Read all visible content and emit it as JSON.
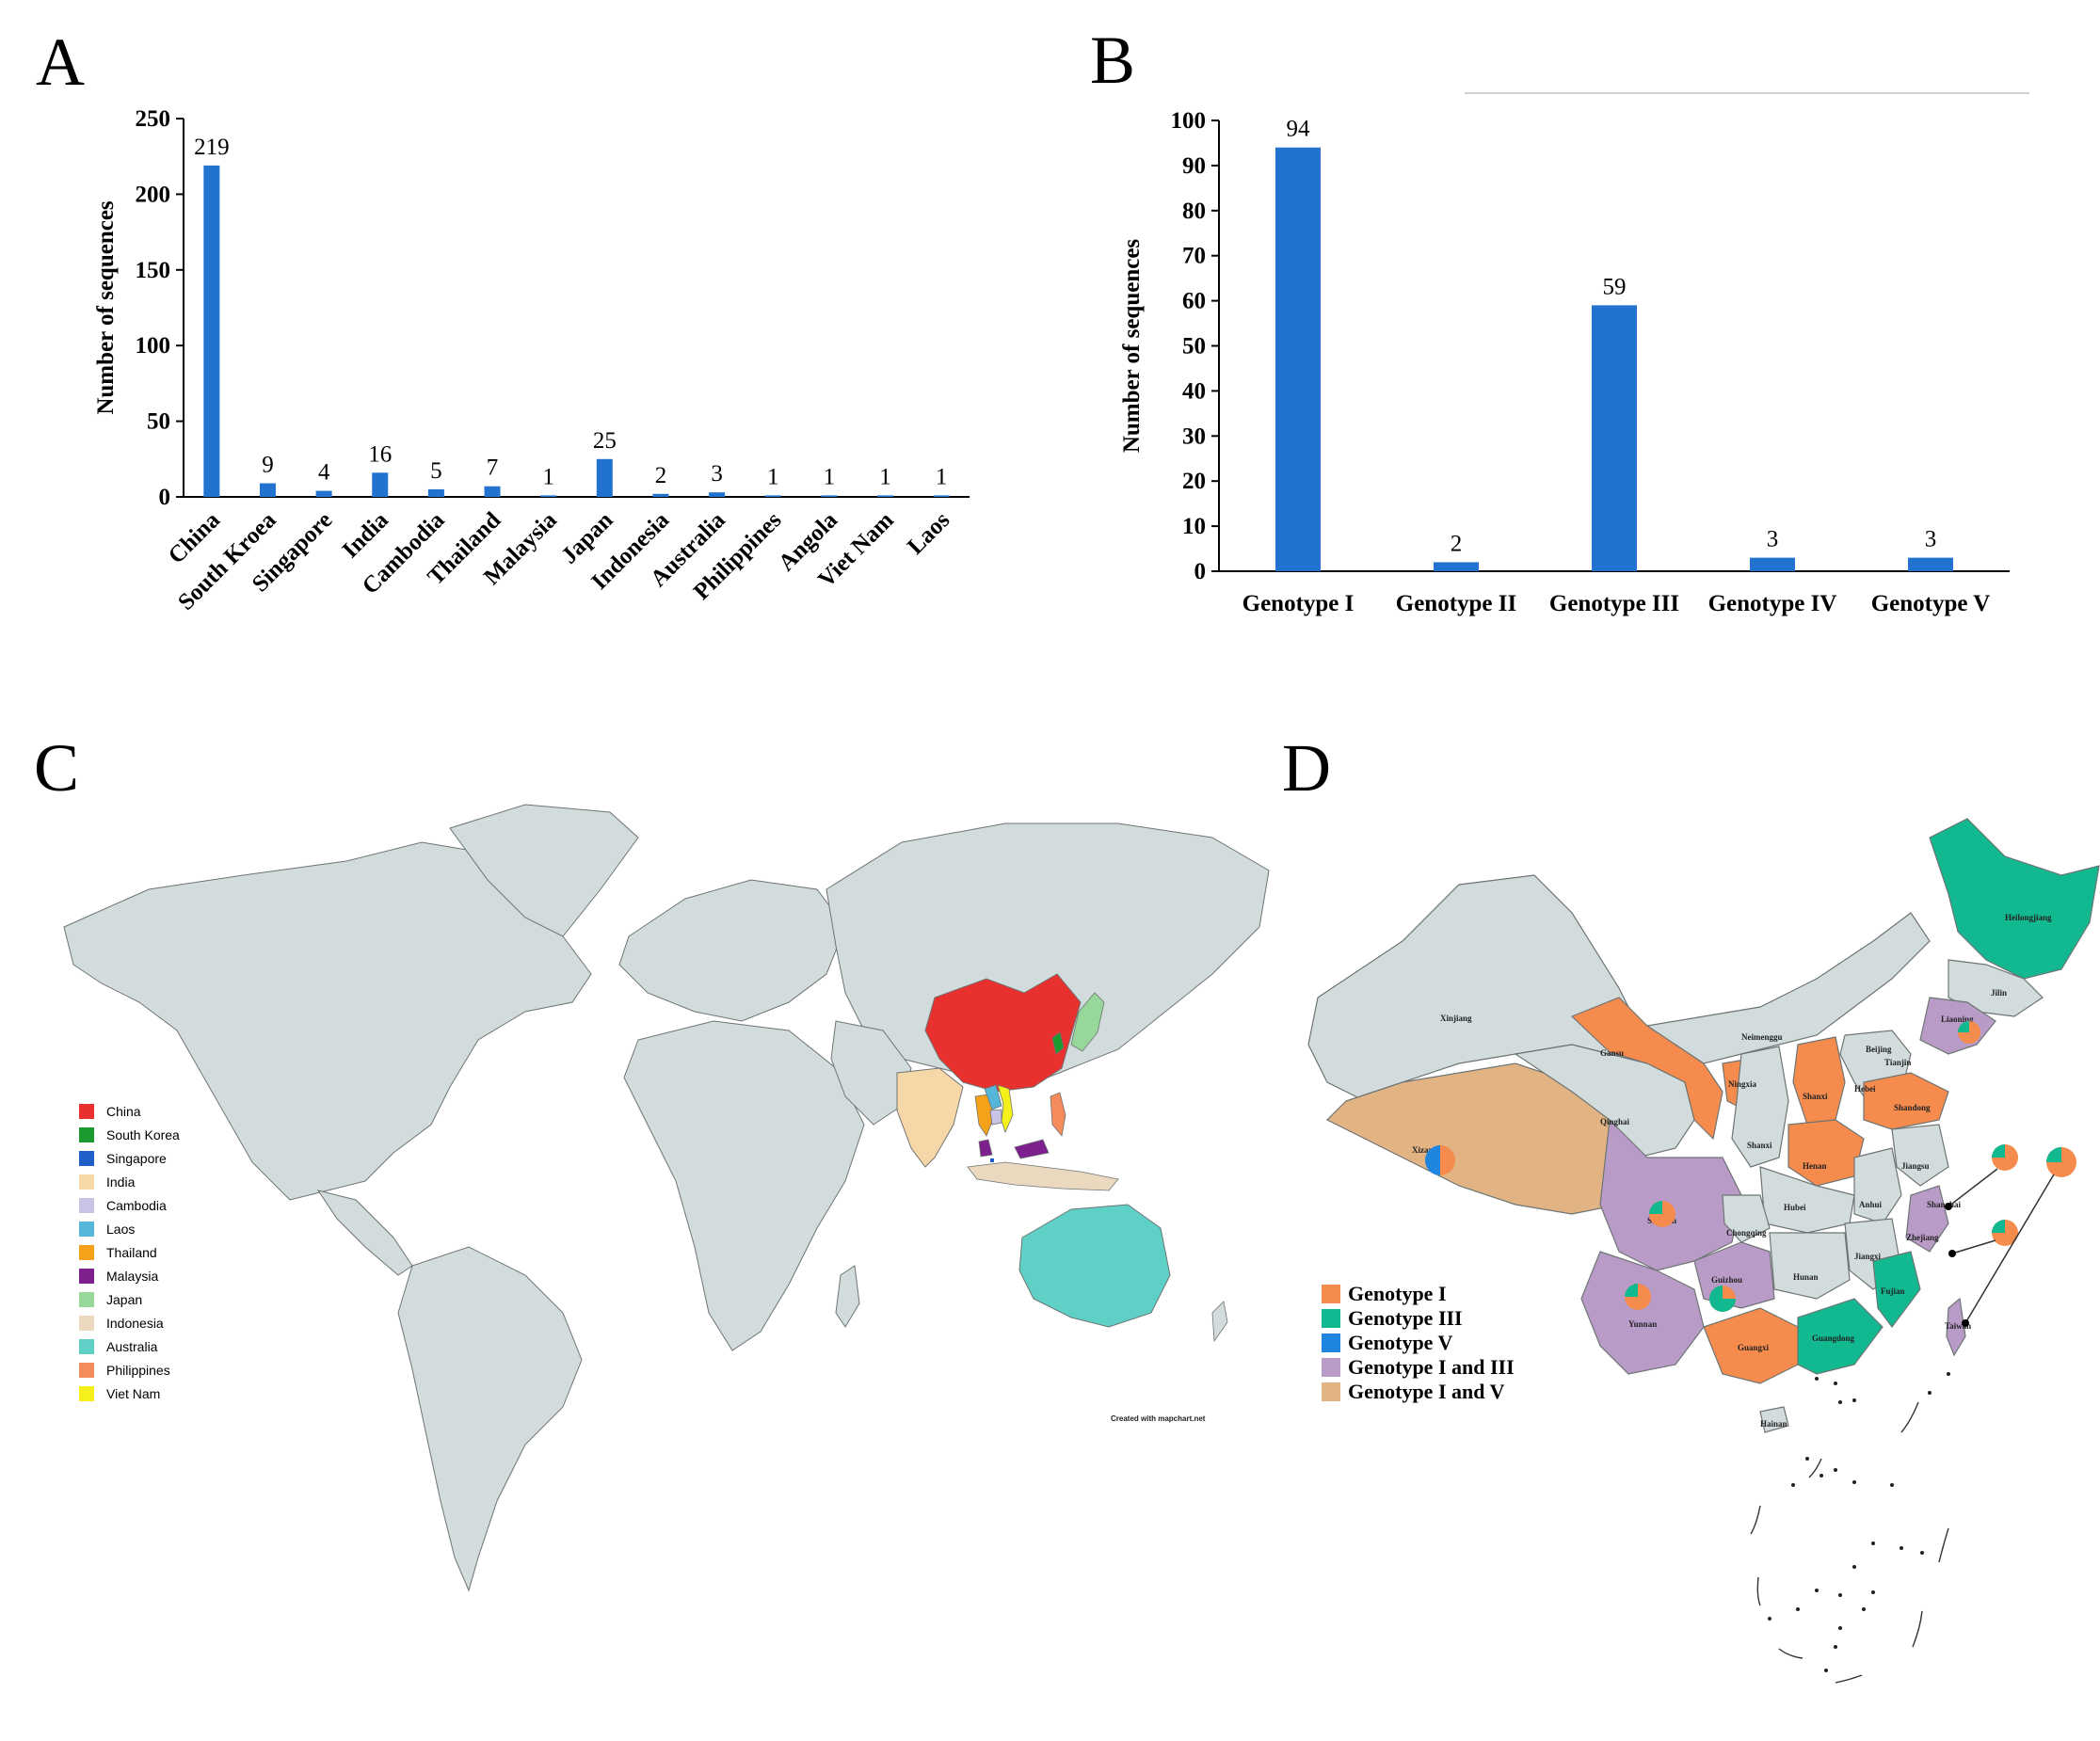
{
  "panels": {
    "a": "A",
    "b": "B",
    "c": "C",
    "d": "D"
  },
  "chart_data": [
    {
      "type": "bar",
      "panel": "A",
      "categories": [
        "China",
        "South Kroea",
        "Singapore",
        "India",
        "Cambodia",
        "Thailand",
        "Malaysia",
        "Japan",
        "Indonesia",
        "Australia",
        "Philippines",
        "Angola",
        "Viet Nam",
        "Laos"
      ],
      "values": [
        219,
        9,
        4,
        16,
        5,
        7,
        1,
        25,
        2,
        3,
        1,
        1,
        1,
        1
      ],
      "ylabel": "Number of sequences",
      "ylim": [
        0,
        250
      ],
      "yticks": [
        0,
        50,
        100,
        150,
        200,
        250
      ],
      "color": "#2272d0"
    },
    {
      "type": "bar",
      "panel": "B",
      "categories": [
        "Genotype I",
        "Genotype II",
        "Genotype III",
        "Genotype IV",
        "Genotype V"
      ],
      "values": [
        94,
        2,
        59,
        3,
        3
      ],
      "ylabel": "Number of sequences",
      "ylim": [
        0,
        100
      ],
      "yticks": [
        0,
        10,
        20,
        30,
        40,
        50,
        60,
        70,
        80,
        90,
        100
      ],
      "color": "#2272d0"
    }
  ],
  "world_map": {
    "legend": [
      {
        "label": "China",
        "color": "#e8312f"
      },
      {
        "label": "South Korea",
        "color": "#1b9a2f"
      },
      {
        "label": "Singapore",
        "color": "#1f5fc9"
      },
      {
        "label": "India",
        "color": "#f6d7a7"
      },
      {
        "label": "Cambodia",
        "color": "#c9c3e6"
      },
      {
        "label": "Laos",
        "color": "#54b6d8"
      },
      {
        "label": "Thailand",
        "color": "#f5a21a"
      },
      {
        "label": "Malaysia",
        "color": "#7d1f8c"
      },
      {
        "label": "Japan",
        "color": "#97d89a"
      },
      {
        "label": "Indonesia",
        "color": "#ead9be"
      },
      {
        "label": "Australia",
        "color": "#5fd0c5"
      },
      {
        "label": "Philippines",
        "color": "#f58a5b"
      },
      {
        "label": "Viet Nam",
        "color": "#f5f01a"
      }
    ],
    "base_color": "#d3dcdc",
    "credit": "Created with mapchart.net"
  },
  "china_map": {
    "legend": [
      {
        "label": "Genotype I",
        "color": "#f58b4c"
      },
      {
        "label": "Genotype III",
        "color": "#12b890"
      },
      {
        "label": "Genotype V",
        "color": "#1f86e0"
      },
      {
        "label": "Genotype I and III",
        "color": "#b99bc8"
      },
      {
        "label": "Genotype I and V",
        "color": "#e2b483"
      }
    ],
    "base_color": "#d3dcdc",
    "provinces": {
      "xinjiang": "Xinjiang",
      "xizang": "Xizang",
      "qinghai": "Qinghai",
      "gansu": "Gansu",
      "neimenggu": "Neimenggu",
      "heilongjiang": "Heilongjiang",
      "jilin": "Jilin",
      "liaoning": "Liaoning",
      "beijing": "Beijing",
      "tianjin": "Tianjin",
      "hebei": "Hebei",
      "shanxi": "Shanxi",
      "shaanxi": "Shanxi",
      "ningxia": "Ningxia",
      "henan": "Henan",
      "shandong": "Shandong",
      "jiangsu": "Jiangsu",
      "shanghai": "Shanghai",
      "anhui": "Anhui",
      "hubei": "Hubei",
      "sichuan": "Sichuan",
      "chongqing": "Chongqing",
      "zhejiang": "Zhejiang",
      "jiangxi": "Jiangxi",
      "hunan": "Hunan",
      "guizhou": "Guizhou",
      "yunnan": "Yunnan",
      "guangxi": "Guangxi",
      "guangdong": "Guangdong",
      "fujian": "Fujian",
      "taiwan": "Taiwan",
      "hainan": "Hainan"
    }
  }
}
